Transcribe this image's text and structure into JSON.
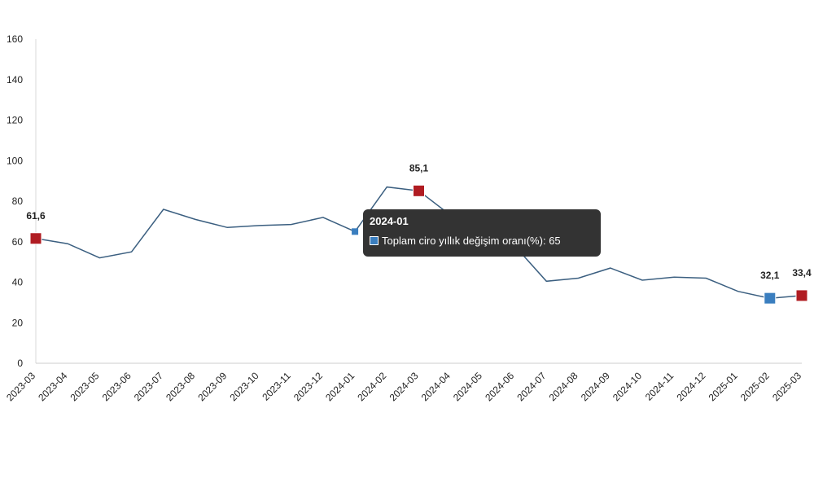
{
  "chart_data": {
    "type": "line",
    "categories": [
      "2023-03",
      "2023-04",
      "2023-05",
      "2023-06",
      "2023-07",
      "2023-08",
      "2023-09",
      "2023-10",
      "2023-11",
      "2023-12",
      "2024-01",
      "2024-02",
      "2024-03",
      "2024-04",
      "2024-05",
      "2024-06",
      "2024-07",
      "2024-08",
      "2024-09",
      "2024-10",
      "2024-11",
      "2024-12",
      "2025-01",
      "2025-02",
      "2025-03"
    ],
    "series": [
      {
        "name": "Toplam ciro yıllık değişim oranı(%)",
        "values": [
          61.6,
          59,
          52,
          55,
          76,
          71,
          67,
          68,
          68.5,
          72,
          65,
          87,
          85.1,
          73,
          68.5,
          58,
          40.5,
          42,
          47,
          41,
          42.5,
          42,
          35.5,
          32.1,
          33.4
        ],
        "color": "#3b5f80"
      }
    ],
    "ylim": [
      0,
      160
    ],
    "yticks": [
      0,
      20,
      40,
      60,
      80,
      100,
      120,
      140,
      160
    ],
    "grid": false,
    "legend": "none",
    "markers": [
      {
        "index": 0,
        "label": "61,6",
        "color": "#b01c22"
      },
      {
        "index": 12,
        "label": "85,1",
        "color": "#b01c22"
      },
      {
        "index": 23,
        "label": "32,1",
        "color": "#3a7ebf"
      },
      {
        "index": 24,
        "label": "33,4",
        "color": "#b01c22"
      }
    ],
    "highlight": {
      "index": 10,
      "color": "#3a7ebf"
    },
    "tooltip": {
      "title": "2024-01",
      "series_label": "Toplam ciro yıllık değişim oranı(%)",
      "value": "65"
    }
  }
}
